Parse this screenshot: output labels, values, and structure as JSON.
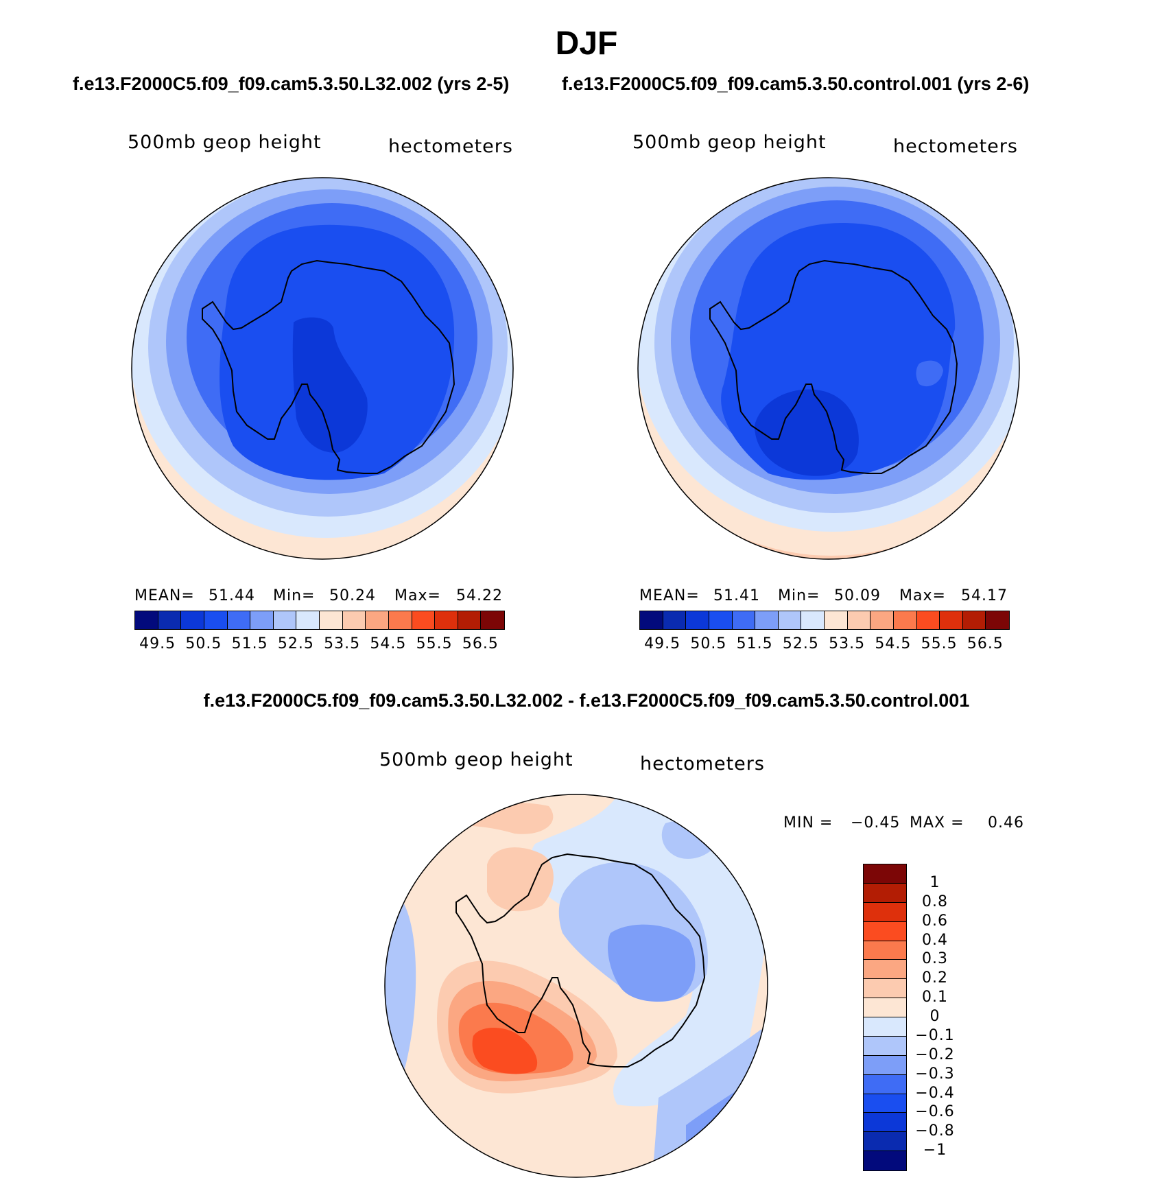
{
  "main_title": "DJF",
  "panels": [
    {
      "title": "f.e13.F2000C5.f09_f09.cam5.3.50.L32.002 (yrs 2-5)",
      "variable": "500mb  geop  height",
      "units": "hectometers",
      "stats": {
        "mean_label": "MEAN=",
        "mean": "51.44",
        "min_label": "Min=",
        "min": "50.24",
        "max_label": "Max=",
        "max": "54.22"
      }
    },
    {
      "title": "f.e13.F2000C5.f09_f09.cam5.3.50.control.001 (yrs 2-6)",
      "variable": "500mb  geop  height",
      "units": "hectometers",
      "stats": {
        "mean_label": "MEAN=",
        "mean": "51.41",
        "min_label": "Min=",
        "min": "50.09",
        "max_label": "Max=",
        "max": "54.17"
      }
    }
  ],
  "difference": {
    "title": "f.e13.F2000C5.f09_f09.cam5.3.50.L32.002 - f.e13.F2000C5.f09_f09.cam5.3.50.control.001",
    "variable": "500mb  geop  height",
    "units": "hectometers",
    "stats": {
      "min_label": "MIN =",
      "min": "−0.45",
      "max_label": "MAX =",
      "max": "0.46"
    }
  },
  "main_colorbar": {
    "colors": [
      "#020a7c",
      "#0a2bb0",
      "#0c38d8",
      "#1a4ef0",
      "#3f6cf5",
      "#7d9ef8",
      "#afc6fa",
      "#d9e8fd",
      "#fde6d4",
      "#fccbb0",
      "#fba782",
      "#fb7a4d",
      "#fb4c20",
      "#de300c",
      "#b31d04",
      "#7c0606"
    ],
    "ticks": [
      "49.5",
      "50.5",
      "51.5",
      "52.5",
      "53.5",
      "54.5",
      "55.5",
      "56.5"
    ]
  },
  "diff_colorbar": {
    "colors": [
      "#7c0606",
      "#b31d04",
      "#de300c",
      "#fb4c20",
      "#fb7a4d",
      "#fba782",
      "#fccbb0",
      "#fde6d4",
      "#d9e8fd",
      "#afc6fa",
      "#7d9ef8",
      "#3f6cf5",
      "#1a4ef0",
      "#0c38d8",
      "#0a2bb0",
      "#020a7c"
    ],
    "ticks": [
      "1",
      "0.8",
      "0.6",
      "0.4",
      "0.3",
      "0.2",
      "0.1",
      "0",
      "−0.1",
      "−0.2",
      "−0.3",
      "−0.4",
      "−0.6",
      "−0.8",
      "−1"
    ]
  }
}
